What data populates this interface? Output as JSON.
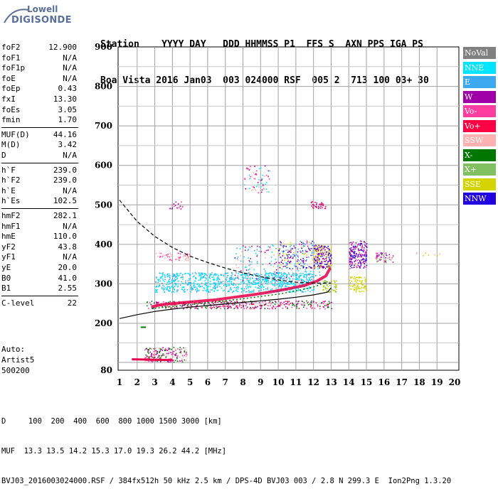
{
  "logo": {
    "line1": "Lowell",
    "line2": "DIGISONDE"
  },
  "header": {
    "line1": "Station    YYYY DAY   DDD HHMMSS P1  FFS S  AXN PPS IGA PS",
    "line2": "Boa Vista 2016 Jan03  003 024000 RSF  005 2  713 100 03+ 30"
  },
  "params": {
    "group1": [
      {
        "name": "foF2",
        "value": "12.900"
      },
      {
        "name": "foF1",
        "value": "N/A"
      },
      {
        "name": "foF1p",
        "value": "N/A"
      },
      {
        "name": "foE",
        "value": "N/A"
      },
      {
        "name": "foEp",
        "value": "0.43"
      },
      {
        "name": "fxI",
        "value": "13.30"
      },
      {
        "name": "foEs",
        "value": "3.05"
      },
      {
        "name": "fmin",
        "value": "1.70"
      }
    ],
    "group2": [
      {
        "name": "MUF(D)",
        "value": "44.16"
      },
      {
        "name": "M(D)",
        "value": "3.42"
      },
      {
        "name": "D",
        "value": "N/A"
      }
    ],
    "group3": [
      {
        "name": "h`F",
        "value": "239.0"
      },
      {
        "name": "h`F2",
        "value": "239.0"
      },
      {
        "name": "h`E",
        "value": "N/A"
      },
      {
        "name": "h`Es",
        "value": "102.5"
      }
    ],
    "group4": [
      {
        "name": "hmF2",
        "value": "282.1"
      },
      {
        "name": "hmF1",
        "value": "N/A"
      },
      {
        "name": "hmE",
        "value": "110.0"
      },
      {
        "name": "yF2",
        "value": "43.8"
      },
      {
        "name": "yF1",
        "value": "N/A"
      },
      {
        "name": "yE",
        "value": "20.0"
      },
      {
        "name": "B0",
        "value": "41.0"
      },
      {
        "name": "B1",
        "value": "2.55"
      }
    ],
    "group5": [
      {
        "name": "C-level",
        "value": "22"
      }
    ]
  },
  "auto": {
    "line1": "Auto:",
    "line2": "Artist5",
    "line3": "500200"
  },
  "legend": [
    {
      "label": "NoVal",
      "color": "#808080"
    },
    {
      "label": "NNE",
      "color": "#00e5ff"
    },
    {
      "label": "E",
      "color": "#3ca8f0"
    },
    {
      "label": "W",
      "color": "#a000a8"
    },
    {
      "label": "Vo-",
      "color": "#ff3ca0"
    },
    {
      "label": "Vo+",
      "color": "#ff0044"
    },
    {
      "label": "SSW",
      "color": "#ffb0b0"
    },
    {
      "label": "X-",
      "color": "#007800"
    },
    {
      "label": "X+",
      "color": "#80c060"
    },
    {
      "label": "SSE",
      "color": "#d4d400"
    },
    {
      "label": "NNW",
      "color": "#2000e0"
    }
  ],
  "bottom": {
    "line1": "D     100  200  400  600  800 1000 1500 3000 [km]",
    "line2": "MUF  13.3 13.5 14.2 15.3 17.0 19.3 26.2 44.2 [MHz]",
    "line3": "BVJ03_2016003024000.RSF / 384fx512h 50 kHz 2.5 km / DPS-4D BVJ03 003 / 2.8 N 299.3 E  Ion2Png 1.3.20"
  },
  "chart_data": {
    "type": "scatter",
    "xlim": [
      1,
      20
    ],
    "ylim": [
      80,
      900
    ],
    "x_ticks": [
      "1",
      "2",
      "3",
      "4",
      "5",
      "6",
      "7",
      "8",
      "9",
      "10",
      "11",
      "12",
      "13",
      "14",
      "15",
      "16",
      "17",
      "18",
      "19",
      "20"
    ],
    "y_ticks": [
      "80",
      "200",
      "300",
      "400",
      "500",
      "600",
      "700",
      "800",
      "900"
    ],
    "grid": true,
    "legend_position": "right",
    "traces": [
      {
        "name": "trace-f2-o",
        "color": "#e8004a",
        "points": [
          [
            2.8,
            242
          ],
          [
            3.5,
            248
          ],
          [
            4.5,
            252
          ],
          [
            5.5,
            256
          ],
          [
            6.5,
            260
          ],
          [
            7.5,
            266
          ],
          [
            8.5,
            272
          ],
          [
            9.5,
            279
          ],
          [
            10.5,
            287
          ],
          [
            11.5,
            296
          ],
          [
            12.2,
            307
          ],
          [
            12.7,
            320
          ],
          [
            12.95,
            340
          ]
        ]
      },
      {
        "name": "trace-f2-x",
        "color": "#007800",
        "points": [
          [
            3.0,
            238
          ],
          [
            4.0,
            243
          ],
          [
            5.0,
            247
          ],
          [
            6.0,
            252
          ],
          [
            7.0,
            257
          ],
          [
            8.0,
            262
          ],
          [
            9.0,
            268
          ],
          [
            10.0,
            274
          ],
          [
            11.0,
            282
          ],
          [
            12.0,
            292
          ],
          [
            12.8,
            305
          ]
        ]
      },
      {
        "name": "model-lower",
        "color": "#000000",
        "points": [
          [
            1.0,
            212
          ],
          [
            2.0,
            222
          ],
          [
            3.0,
            230
          ],
          [
            4.0,
            236
          ],
          [
            5.0,
            241
          ],
          [
            6.0,
            245
          ],
          [
            7.0,
            249
          ],
          [
            8.0,
            253
          ],
          [
            9.0,
            257
          ],
          [
            10.0,
            261
          ],
          [
            11.0,
            266
          ],
          [
            12.0,
            272
          ],
          [
            12.8,
            279
          ],
          [
            13.0,
            290
          ]
        ]
      },
      {
        "name": "model-upper-dashed",
        "color": "#000000",
        "points": [
          [
            1.0,
            512
          ],
          [
            2.0,
            458
          ],
          [
            3.0,
            420
          ],
          [
            4.0,
            392
          ],
          [
            5.0,
            370
          ],
          [
            6.0,
            354
          ],
          [
            7.0,
            340
          ],
          [
            8.0,
            328
          ],
          [
            9.0,
            318
          ],
          [
            10.0,
            310
          ],
          [
            11.0,
            304
          ],
          [
            12.0,
            302
          ],
          [
            13.0,
            302
          ]
        ]
      }
    ]
  }
}
